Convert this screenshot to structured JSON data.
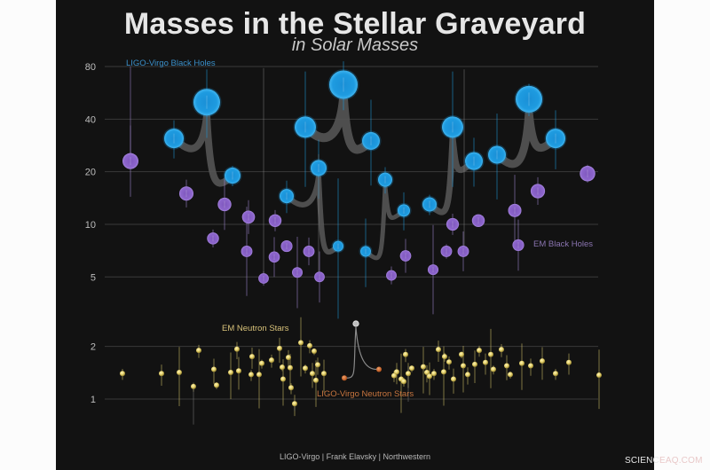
{
  "header": {
    "title": "Masses in the Stellar Graveyard",
    "subtitle": "in Solar Masses"
  },
  "labels": {
    "ligo_bh": "LIGO-Virgo Black Holes",
    "em_bh": "EM Black Holes",
    "em_ns": "EM Neutron Stars",
    "ligo_ns": "LIGO-Virgo Neutron Stars"
  },
  "footer": {
    "credit": "LIGO-Virgo | Frank Elavsky | Northwestern",
    "watermark_a": "SCIENC",
    "watermark_b": "EAQ.COM"
  },
  "colors": {
    "background": "#121212",
    "ligo_bh": "#1e9be0",
    "em_bh": "#8b63c9",
    "em_ns": "#e3cf6a",
    "ligo_ns": "#d9712e",
    "merger_track": "#5a5a5a",
    "grid": "#3a3a3a"
  },
  "chart_data": {
    "type": "scatter",
    "title": "Masses in the Stellar Graveyard",
    "subtitle": "in Solar Masses",
    "yscale": "log",
    "ylim": [
      0.7,
      85
    ],
    "yticks": [
      1,
      2,
      5,
      10,
      20,
      40,
      80
    ],
    "ylabel": "Solar Masses",
    "xlabel": "",
    "grid": true,
    "series": [
      {
        "name": "LIGO-Virgo Black Holes",
        "color": "#1e9be0",
        "points": [
          {
            "x": 196,
            "y": 31,
            "r": 11
          },
          {
            "x": 233,
            "y": 50,
            "r": 15
          },
          {
            "x": 262,
            "y": 19,
            "r": 9
          },
          {
            "x": 344,
            "y": 36,
            "r": 12
          },
          {
            "x": 387,
            "y": 63,
            "r": 16
          },
          {
            "x": 418,
            "y": 30,
            "r": 10
          },
          {
            "x": 323,
            "y": 14.5,
            "r": 8
          },
          {
            "x": 359,
            "y": 21,
            "r": 9
          },
          {
            "x": 381,
            "y": 7.5,
            "r": 6
          },
          {
            "x": 434,
            "y": 18,
            "r": 8
          },
          {
            "x": 455,
            "y": 12,
            "r": 7
          },
          {
            "x": 412,
            "y": 7,
            "r": 6
          },
          {
            "x": 484,
            "y": 13,
            "r": 8
          },
          {
            "x": 510,
            "y": 36,
            "r": 12
          },
          {
            "x": 534,
            "y": 23,
            "r": 10
          },
          {
            "x": 560,
            "y": 25,
            "r": 10
          },
          {
            "x": 596,
            "y": 52,
            "r": 15
          },
          {
            "x": 626,
            "y": 31,
            "r": 11
          }
        ]
      },
      {
        "name": "EM Black Holes",
        "color": "#8b63c9",
        "points": [
          {
            "x": 147,
            "y": 23
          },
          {
            "x": 210,
            "y": 15
          },
          {
            "x": 253,
            "y": 13
          },
          {
            "x": 240,
            "y": 8.3
          },
          {
            "x": 280,
            "y": 11
          },
          {
            "x": 278,
            "y": 7
          },
          {
            "x": 297,
            "y": 4.9
          },
          {
            "x": 310,
            "y": 10.5
          },
          {
            "x": 309,
            "y": 6.5
          },
          {
            "x": 323,
            "y": 7.5
          },
          {
            "x": 335,
            "y": 5.3
          },
          {
            "x": 348,
            "y": 7
          },
          {
            "x": 360,
            "y": 5
          },
          {
            "x": 441,
            "y": 5.1
          },
          {
            "x": 457,
            "y": 6.6
          },
          {
            "x": 488,
            "y": 5.5
          },
          {
            "x": 503,
            "y": 7
          },
          {
            "x": 510,
            "y": 10
          },
          {
            "x": 522,
            "y": 7
          },
          {
            "x": 539,
            "y": 10.5
          },
          {
            "x": 580,
            "y": 12
          },
          {
            "x": 606,
            "y": 15.5
          },
          {
            "x": 584,
            "y": 7.6
          },
          {
            "x": 662,
            "y": 19.5
          }
        ]
      },
      {
        "name": "EM Neutron Stars",
        "color": "#e3cf6a",
        "points": [
          {
            "x": 138,
            "y": 1.4
          },
          {
            "x": 182,
            "y": 1.4
          },
          {
            "x": 202,
            "y": 1.42
          },
          {
            "x": 218,
            "y": 1.18
          },
          {
            "x": 224,
            "y": 1.9
          },
          {
            "x": 241,
            "y": 1.48
          },
          {
            "x": 244,
            "y": 1.2
          },
          {
            "x": 260,
            "y": 1.42
          },
          {
            "x": 267,
            "y": 1.93
          },
          {
            "x": 269,
            "y": 1.45
          },
          {
            "x": 283,
            "y": 1.38
          },
          {
            "x": 284,
            "y": 1.75
          },
          {
            "x": 292,
            "y": 1.38
          },
          {
            "x": 295,
            "y": 1.6
          },
          {
            "x": 306,
            "y": 1.67
          },
          {
            "x": 315,
            "y": 1.95
          },
          {
            "x": 318,
            "y": 1.52
          },
          {
            "x": 319,
            "y": 1.3
          },
          {
            "x": 325,
            "y": 1.73
          },
          {
            "x": 327,
            "y": 1.51
          },
          {
            "x": 328,
            "y": 1.16
          },
          {
            "x": 332,
            "y": 0.94
          },
          {
            "x": 339,
            "y": 2.1
          },
          {
            "x": 344,
            "y": 1.5
          },
          {
            "x": 349,
            "y": 2.02
          },
          {
            "x": 352,
            "y": 1.4
          },
          {
            "x": 354,
            "y": 1.88
          },
          {
            "x": 356,
            "y": 1.28
          },
          {
            "x": 358,
            "y": 1.57
          },
          {
            "x": 365,
            "y": 1.4
          },
          {
            "x": 444,
            "y": 1.36
          },
          {
            "x": 447,
            "y": 1.43
          },
          {
            "x": 452,
            "y": 1.3
          },
          {
            "x": 455,
            "y": 1.26
          },
          {
            "x": 457,
            "y": 1.8
          },
          {
            "x": 460,
            "y": 1.4
          },
          {
            "x": 464,
            "y": 1.5
          },
          {
            "x": 477,
            "y": 1.53
          },
          {
            "x": 481,
            "y": 1.42
          },
          {
            "x": 484,
            "y": 1.35
          },
          {
            "x": 489,
            "y": 1.4
          },
          {
            "x": 494,
            "y": 1.92
          },
          {
            "x": 500,
            "y": 1.43
          },
          {
            "x": 501,
            "y": 1.75
          },
          {
            "x": 506,
            "y": 1.63
          },
          {
            "x": 511,
            "y": 1.3
          },
          {
            "x": 520,
            "y": 1.8
          },
          {
            "x": 522,
            "y": 1.55
          },
          {
            "x": 527,
            "y": 1.38
          },
          {
            "x": 535,
            "y": 1.58
          },
          {
            "x": 540,
            "y": 1.9
          },
          {
            "x": 547,
            "y": 1.62
          },
          {
            "x": 553,
            "y": 1.8
          },
          {
            "x": 556,
            "y": 1.48
          },
          {
            "x": 565,
            "y": 1.92
          },
          {
            "x": 571,
            "y": 1.55
          },
          {
            "x": 575,
            "y": 1.38
          },
          {
            "x": 588,
            "y": 1.6
          },
          {
            "x": 598,
            "y": 1.55
          },
          {
            "x": 611,
            "y": 1.65
          },
          {
            "x": 626,
            "y": 1.4
          },
          {
            "x": 641,
            "y": 1.62
          },
          {
            "x": 675,
            "y": 1.37
          }
        ]
      },
      {
        "name": "LIGO-Virgo Neutron Stars",
        "color": "#d9712e",
        "points": [
          {
            "x": 388,
            "y": 1.32
          },
          {
            "x": 427,
            "y": 1.48
          },
          {
            "x": 401,
            "y": 2.7
          }
        ]
      }
    ],
    "annotations": [
      "LIGO-Virgo Black Holes",
      "EM Black Holes",
      "EM Neutron Stars",
      "LIGO-Virgo Neutron Stars"
    ],
    "credit": "LIGO-Virgo | Frank Elavsky | Northwestern"
  }
}
